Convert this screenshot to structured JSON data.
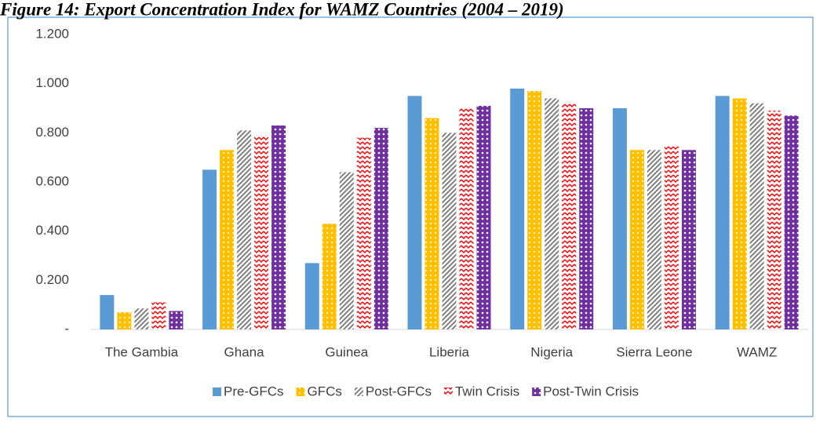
{
  "chart_data": {
    "type": "bar",
    "title": "Figure 14: Export Concentration Index for WAMZ Countries (2004 – 2019)",
    "categories": [
      "The Gambia",
      "Ghana",
      "Guinea",
      "Liberia",
      "Nigeria",
      "Sierra Leone",
      "WAMZ"
    ],
    "series": [
      {
        "name": "Pre-GFCs",
        "color": "#5b9bd5",
        "pattern": "solid",
        "values": [
          0.14,
          0.65,
          0.27,
          0.95,
          0.98,
          0.9,
          0.95
        ]
      },
      {
        "name": "GFCs",
        "color": "#ffc000",
        "pattern": "dots",
        "values": [
          0.07,
          0.73,
          0.43,
          0.86,
          0.97,
          0.73,
          0.94
        ]
      },
      {
        "name": "Post-GFCs",
        "color": "#7f7f7f",
        "pattern": "hatch",
        "values": [
          0.085,
          0.81,
          0.64,
          0.8,
          0.94,
          0.73,
          0.92
        ]
      },
      {
        "name": "Twin Crisis",
        "color": "#ff0000",
        "pattern": "zigzag",
        "values": [
          0.11,
          0.79,
          0.78,
          0.9,
          0.92,
          0.75,
          0.89
        ]
      },
      {
        "name": "Post-Twin Crisis",
        "color": "#7030a0",
        "pattern": "rings",
        "values": [
          0.075,
          0.83,
          0.82,
          0.91,
          0.9,
          0.73,
          0.87
        ]
      }
    ],
    "ylim": [
      0,
      1.2
    ],
    "yticks": [
      {
        "value": 0,
        "label": "-"
      },
      {
        "value": 0.2,
        "label": "0.200"
      },
      {
        "value": 0.4,
        "label": "0.400"
      },
      {
        "value": 0.6,
        "label": "0.600"
      },
      {
        "value": 0.8,
        "label": "0.800"
      },
      {
        "value": 1.0,
        "label": "1.000"
      },
      {
        "value": 1.2,
        "label": "1.200"
      }
    ],
    "legend": "bottom"
  }
}
